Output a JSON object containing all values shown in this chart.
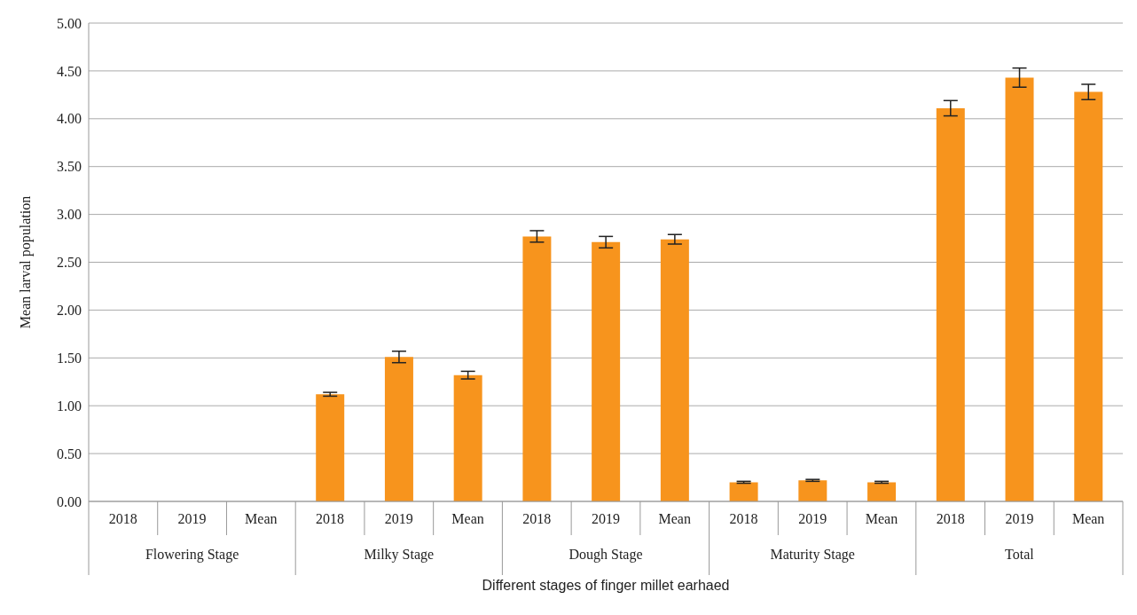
{
  "chart_data": {
    "type": "bar",
    "xlabel": "Different stages of finger millet earhaed",
    "ylabel": "Mean larval population",
    "categories": [
      "2018",
      "2019",
      "Mean",
      "2018",
      "2019",
      "Mean",
      "2018",
      "2019",
      "Mean",
      "2018",
      "2019",
      "Mean",
      "2018",
      "2019",
      "Mean"
    ],
    "annotations": [
      "Flowering Stage",
      "Milky Stage",
      "Dough Stage",
      "Maturity Stage",
      "Total"
    ],
    "values": [
      0,
      0,
      0,
      1.12,
      1.51,
      1.32,
      2.77,
      2.71,
      2.74,
      0.2,
      0.22,
      0.2,
      4.11,
      4.43,
      4.28
    ],
    "errors": [
      null,
      null,
      null,
      0.02,
      0.06,
      0.04,
      0.06,
      0.06,
      0.05,
      0.01,
      0.01,
      0.01,
      0.08,
      0.1,
      0.08
    ],
    "color": "#f7941d",
    "ylim": [
      0,
      5
    ],
    "yticks": [
      {
        "value": 0,
        "label": "0.00"
      },
      {
        "value": 0.5,
        "label": "0.50"
      },
      {
        "value": 1,
        "label": "1.00"
      },
      {
        "value": 1.5,
        "label": "1.50"
      },
      {
        "value": 2,
        "label": "2.00"
      },
      {
        "value": 2.5,
        "label": "2.50"
      },
      {
        "value": 3,
        "label": "3.00"
      },
      {
        "value": 3.5,
        "label": "3.50"
      },
      {
        "value": 4,
        "label": "4.00"
      },
      {
        "value": 4.5,
        "label": "4.50"
      },
      {
        "value": 5,
        "label": "5.00"
      }
    ],
    "grid": "y"
  }
}
